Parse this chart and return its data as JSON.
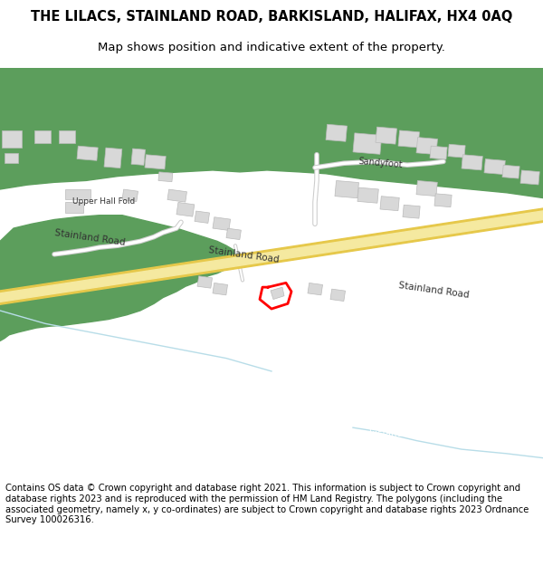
{
  "title_line1": "THE LILACS, STAINLAND ROAD, BARKISLAND, HALIFAX, HX4 0AQ",
  "title_line2": "Map shows position and indicative extent of the property.",
  "footer_text": "Contains OS data © Crown copyright and database right 2021. This information is subject to Crown copyright and database rights 2023 and is reproduced with the permission of HM Land Registry. The polygons (including the associated geometry, namely x, y co-ordinates) are subject to Crown copyright and database rights 2023 Ordnance Survey 100026316.",
  "map_bg": "#f8f8f8",
  "road_color": "#f5e9a0",
  "road_border": "#e6c84a",
  "green_color": "#5c9e5c",
  "building_color": "#d8d8d8",
  "building_edge": "#bbbbbb",
  "water_color": "#b8dde8",
  "plot_color": "#ff0000",
  "road_label_color": "#333333",
  "white_bg": "#ffffff",
  "figsize": [
    6.0,
    6.25
  ],
  "dpi": 100
}
